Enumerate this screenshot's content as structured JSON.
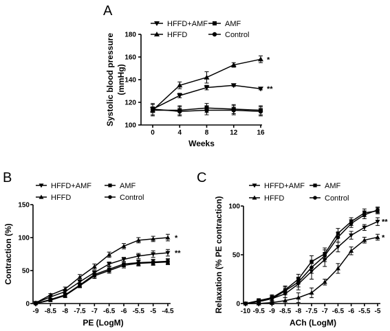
{
  "chart_data": [
    {
      "panel": "A",
      "type": "line",
      "xlabel": "Weeks",
      "ylabel": [
        "Systolic blood pressure",
        "(mmHg)"
      ],
      "x": [
        0,
        4,
        8,
        12,
        16
      ],
      "xticks": [
        "0",
        "4",
        "8",
        "12",
        "16"
      ],
      "ylim": [
        100,
        180
      ],
      "yticks": [
        "100",
        "120",
        "140",
        "160",
        "180"
      ],
      "legend": "top-left",
      "series": [
        {
          "name": "HFFD+AMF",
          "marker": "tri-down",
          "values": [
            114,
            126,
            133,
            135,
            132
          ],
          "err": [
            2,
            2,
            2,
            1,
            1
          ],
          "sig": "**"
        },
        {
          "name": "HFFD",
          "marker": "tri-up",
          "values": [
            113,
            135,
            142,
            153,
            158
          ],
          "err": [
            2,
            3,
            5,
            2,
            3
          ],
          "sig": "*"
        },
        {
          "name": "AMF",
          "marker": "square",
          "values": [
            113,
            113,
            115,
            114,
            113
          ],
          "err": [
            5,
            4,
            4,
            4,
            4
          ]
        },
        {
          "name": "Control",
          "marker": "circle",
          "values": [
            114,
            112,
            113,
            113,
            112
          ],
          "err": [
            5,
            4,
            4,
            4,
            4
          ]
        }
      ]
    },
    {
      "panel": "B",
      "type": "line",
      "xlabel": "PE (LogM)",
      "ylabel": [
        "Contraction (%)"
      ],
      "x": [
        -9,
        -8.5,
        -8,
        -7.5,
        -7,
        -6.5,
        -6,
        -5.5,
        -5,
        -4.5
      ],
      "xticks": [
        "-9",
        "-8.5",
        "-8",
        "-7.5",
        "-7",
        "-6.5",
        "-6",
        "-5.5",
        "-5",
        "-4.5"
      ],
      "ylim": [
        0,
        150
      ],
      "yticks": [
        "0",
        "50",
        "100",
        "150"
      ],
      "legend": "top-left",
      "series": [
        {
          "name": "HFFD+AMF",
          "marker": "tri-down",
          "values": [
            1,
            10,
            18,
            33,
            47,
            60,
            67,
            72,
            75,
            77
          ],
          "err": [
            1,
            2,
            3,
            3,
            3,
            3,
            3,
            4,
            5,
            5
          ],
          "sig": "**"
        },
        {
          "name": "HFFD",
          "marker": "tri-up",
          "values": [
            1,
            13,
            22,
            40,
            56,
            74,
            87,
            96,
            98,
            100
          ],
          "err": [
            1,
            2,
            3,
            4,
            4,
            4,
            4,
            4,
            4,
            5
          ],
          "sig": "*"
        },
        {
          "name": "AMF",
          "marker": "square",
          "values": [
            0,
            5,
            12,
            27,
            42,
            50,
            58,
            61,
            62,
            63
          ],
          "err": [
            1,
            2,
            3,
            3,
            4,
            4,
            4,
            4,
            4,
            4
          ]
        },
        {
          "name": "Control",
          "marker": "circle",
          "values": [
            0,
            6,
            13,
            28,
            44,
            52,
            60,
            62,
            63,
            64
          ],
          "err": [
            1,
            2,
            3,
            3,
            4,
            4,
            4,
            4,
            4,
            4
          ]
        }
      ]
    },
    {
      "panel": "C",
      "type": "line",
      "xlabel": "ACh (LogM)",
      "ylabel": [
        "Relaxation (% PE contraction)"
      ],
      "x": [
        -10,
        -9.5,
        -9,
        -8.5,
        -8,
        -7.5,
        -7,
        -6.5,
        -6,
        -5.5,
        -5
      ],
      "xticks": [
        "-10",
        "-9.5",
        "-9",
        "-8.5",
        "-8",
        "-7.5",
        "-7",
        "-6.5",
        "-6",
        "-5.5",
        "-5"
      ],
      "ylim": [
        0,
        100
      ],
      "yticks": [
        "0",
        "50",
        "100"
      ],
      "legend": "top-left",
      "series": [
        {
          "name": "HFFD+AMF",
          "marker": "tri-down",
          "values": [
            0,
            2,
            5,
            10,
            20,
            33,
            45,
            58,
            70,
            78,
            84
          ],
          "err": [
            1,
            2,
            3,
            4,
            6,
            8,
            7,
            5,
            4,
            3,
            4
          ],
          "sig": "**"
        },
        {
          "name": "HFFD",
          "marker": "tri-up",
          "values": [
            0,
            0,
            1,
            3,
            6,
            11,
            22,
            36,
            54,
            65,
            68
          ],
          "err": [
            1,
            1,
            2,
            3,
            5,
            5,
            3,
            5,
            4,
            3,
            3
          ],
          "sig": "*"
        },
        {
          "name": "AMF",
          "marker": "square",
          "values": [
            0,
            3,
            6,
            14,
            25,
            43,
            51,
            72,
            84,
            93,
            95
          ],
          "err": [
            1,
            2,
            3,
            4,
            5,
            6,
            6,
            5,
            4,
            4,
            3
          ]
        },
        {
          "name": "Control",
          "marker": "circle",
          "values": [
            0,
            2,
            5,
            13,
            22,
            37,
            49,
            68,
            82,
            91,
            96
          ],
          "err": [
            1,
            2,
            3,
            4,
            5,
            6,
            6,
            5,
            4,
            4,
            3
          ]
        }
      ]
    }
  ]
}
